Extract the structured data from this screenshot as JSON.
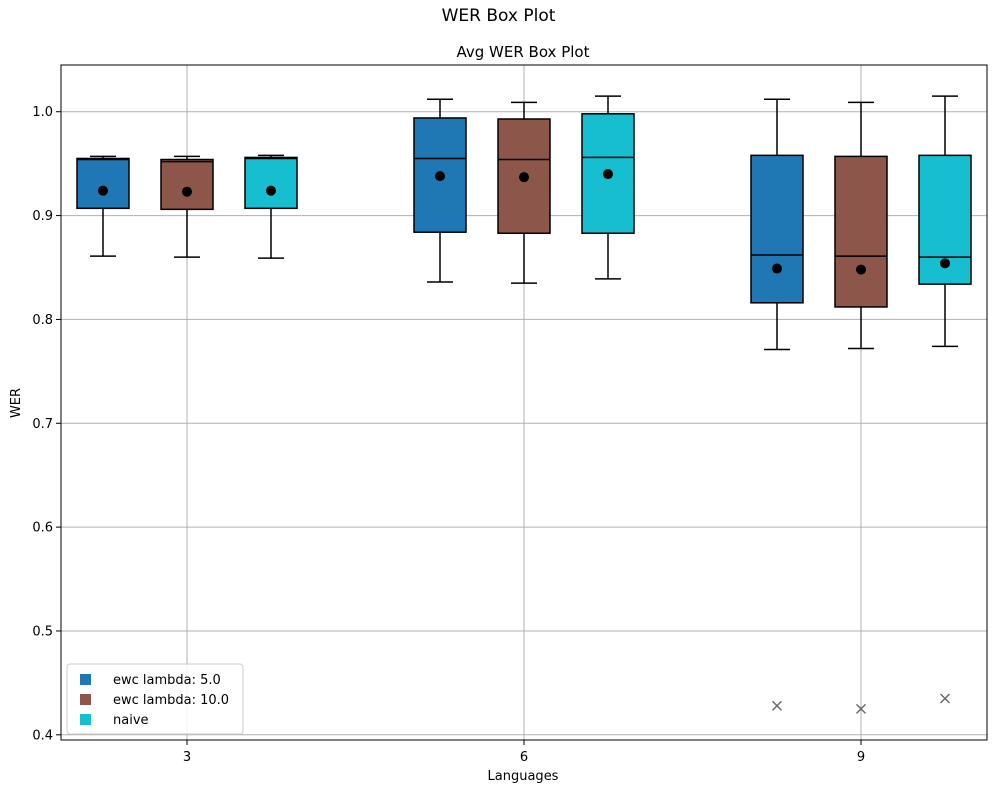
{
  "figure_title": "WER Box Plot",
  "chart_data": {
    "type": "box",
    "title": "Avg WER Box Plot",
    "xlabel": "Languages",
    "ylabel": "WER",
    "categories": [
      "3",
      "6",
      "9"
    ],
    "ylim": [
      0.395,
      1.045
    ],
    "yticks": [
      "0.4",
      "0.5",
      "0.6",
      "0.7",
      "0.8",
      "0.9",
      "1.0"
    ],
    "grid": true,
    "legend_position": "lower-left",
    "series": [
      {
        "name": "ewc lambda: 5.0",
        "color": "#1f77b4",
        "boxes": [
          {
            "whislo": 0.861,
            "q1": 0.907,
            "med": 0.954,
            "q3": 0.955,
            "whishi": 0.957,
            "mean": 0.924,
            "outliers": []
          },
          {
            "whislo": 0.836,
            "q1": 0.884,
            "med": 0.955,
            "q3": 0.994,
            "whishi": 1.012,
            "mean": 0.938,
            "outliers": []
          },
          {
            "whislo": 0.771,
            "q1": 0.816,
            "med": 0.862,
            "q3": 0.958,
            "whishi": 1.012,
            "mean": 0.849,
            "outliers": [
              0.428
            ]
          }
        ]
      },
      {
        "name": "ewc lambda: 10.0",
        "color": "#8c564b",
        "boxes": [
          {
            "whislo": 0.86,
            "q1": 0.906,
            "med": 0.952,
            "q3": 0.954,
            "whishi": 0.957,
            "mean": 0.923,
            "outliers": []
          },
          {
            "whislo": 0.835,
            "q1": 0.883,
            "med": 0.954,
            "q3": 0.993,
            "whishi": 1.009,
            "mean": 0.937,
            "outliers": []
          },
          {
            "whislo": 0.772,
            "q1": 0.812,
            "med": 0.861,
            "q3": 0.957,
            "whishi": 1.009,
            "mean": 0.848,
            "outliers": [
              0.425
            ]
          }
        ]
      },
      {
        "name": "naive",
        "color": "#17becf",
        "boxes": [
          {
            "whislo": 0.859,
            "q1": 0.907,
            "med": 0.955,
            "q3": 0.956,
            "whishi": 0.958,
            "mean": 0.924,
            "outliers": []
          },
          {
            "whislo": 0.839,
            "q1": 0.883,
            "med": 0.956,
            "q3": 0.998,
            "whishi": 1.015,
            "mean": 0.94,
            "outliers": []
          },
          {
            "whislo": 0.774,
            "q1": 0.834,
            "med": 0.86,
            "q3": 0.958,
            "whishi": 1.015,
            "mean": 0.854,
            "outliers": [
              0.435
            ]
          }
        ]
      }
    ]
  }
}
